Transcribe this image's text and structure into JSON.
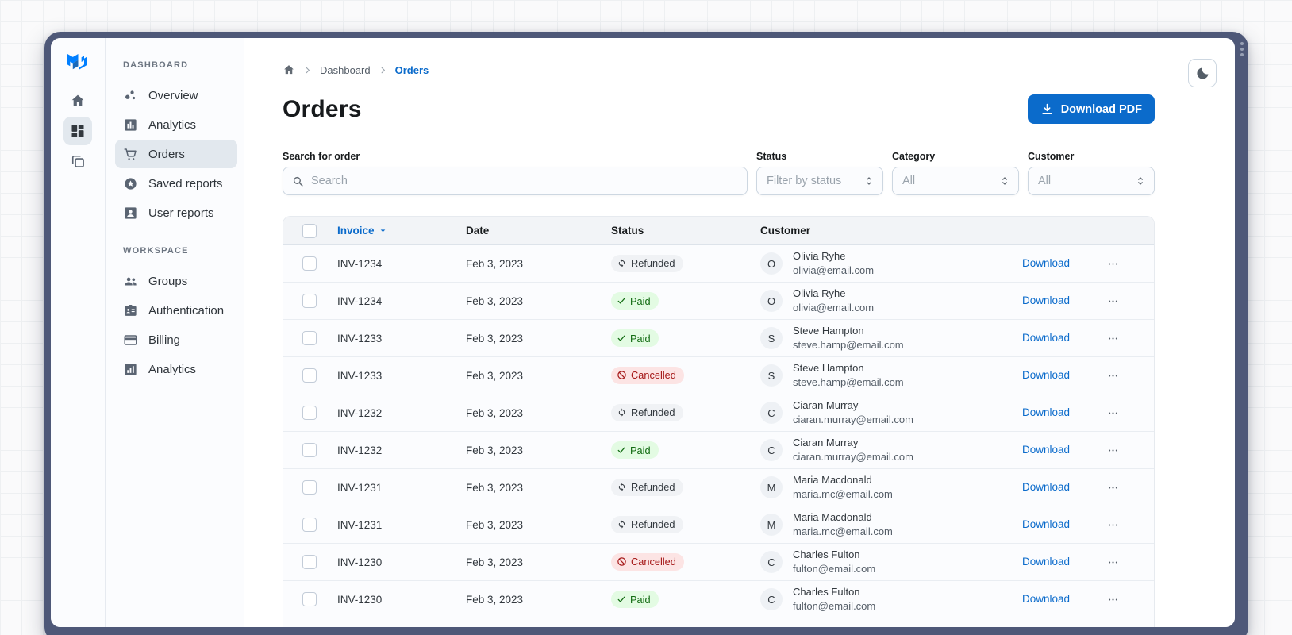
{
  "window": {
    "frame_color": "#4E5878",
    "scrollbar_dots": 3
  },
  "sidebar": {
    "rail": {
      "logo_icon": "mui-logo",
      "items": [
        {
          "icon": "home-icon",
          "active": false
        },
        {
          "icon": "dashboard-icon",
          "active": true
        },
        {
          "icon": "stack-icon",
          "active": false
        }
      ]
    },
    "sections": [
      {
        "label": "DASHBOARD",
        "items": [
          {
            "icon": "scatter-icon",
            "label": "Overview",
            "active": false
          },
          {
            "icon": "bar-chart-icon",
            "label": "Analytics",
            "active": false
          },
          {
            "icon": "cart-icon",
            "label": "Orders",
            "active": true
          },
          {
            "icon": "star-circle-icon",
            "label": "Saved reports",
            "active": false
          },
          {
            "icon": "user-box-icon",
            "label": "User reports",
            "active": false
          }
        ]
      },
      {
        "label": "WORKSPACE",
        "items": [
          {
            "icon": "groups-icon",
            "label": "Groups",
            "active": false
          },
          {
            "icon": "badge-icon",
            "label": "Authentication",
            "active": false
          },
          {
            "icon": "credit-card-icon",
            "label": "Billing",
            "active": false
          },
          {
            "icon": "analytics-icon",
            "label": "Analytics",
            "active": false
          }
        ]
      }
    ]
  },
  "breadcrumb": {
    "home_icon": "home-icon",
    "link": "Dashboard",
    "current": "Orders"
  },
  "header": {
    "title": "Orders",
    "download_button": "Download PDF",
    "theme_toggle_icon": "moon-icon"
  },
  "filters": {
    "search": {
      "label": "Search for order",
      "placeholder": "Search"
    },
    "selects": [
      {
        "label": "Status",
        "value": "Filter by status"
      },
      {
        "label": "Category",
        "value": "All"
      },
      {
        "label": "Customer",
        "value": "All"
      }
    ]
  },
  "table": {
    "columns": {
      "invoice": "Invoice",
      "date": "Date",
      "status": "Status",
      "customer": "Customer"
    },
    "sorted_by": "invoice",
    "row_action_label": "Download",
    "rows": [
      {
        "invoice": "INV-1234",
        "date": "Feb 3, 2023",
        "status": "Refunded",
        "initial": "O",
        "name": "Olivia Ryhe",
        "email": "olivia@email.com"
      },
      {
        "invoice": "INV-1234",
        "date": "Feb 3, 2023",
        "status": "Paid",
        "initial": "O",
        "name": "Olivia Ryhe",
        "email": "olivia@email.com"
      },
      {
        "invoice": "INV-1233",
        "date": "Feb 3, 2023",
        "status": "Paid",
        "initial": "S",
        "name": "Steve Hampton",
        "email": "steve.hamp@email.com"
      },
      {
        "invoice": "INV-1233",
        "date": "Feb 3, 2023",
        "status": "Cancelled",
        "initial": "S",
        "name": "Steve Hampton",
        "email": "steve.hamp@email.com"
      },
      {
        "invoice": "INV-1232",
        "date": "Feb 3, 2023",
        "status": "Refunded",
        "initial": "C",
        "name": "Ciaran Murray",
        "email": "ciaran.murray@email.com"
      },
      {
        "invoice": "INV-1232",
        "date": "Feb 3, 2023",
        "status": "Paid",
        "initial": "C",
        "name": "Ciaran Murray",
        "email": "ciaran.murray@email.com"
      },
      {
        "invoice": "INV-1231",
        "date": "Feb 3, 2023",
        "status": "Refunded",
        "initial": "M",
        "name": "Maria Macdonald",
        "email": "maria.mc@email.com"
      },
      {
        "invoice": "INV-1231",
        "date": "Feb 3, 2023",
        "status": "Refunded",
        "initial": "M",
        "name": "Maria Macdonald",
        "email": "maria.mc@email.com"
      },
      {
        "invoice": "INV-1230",
        "date": "Feb 3, 2023",
        "status": "Cancelled",
        "initial": "C",
        "name": "Charles Fulton",
        "email": "fulton@email.com"
      },
      {
        "invoice": "INV-1230",
        "date": "Feb 3, 2023",
        "status": "Paid",
        "initial": "C",
        "name": "Charles Fulton",
        "email": "fulton@email.com"
      }
    ]
  },
  "status_styles": {
    "Refunded": {
      "icon": "refresh-icon",
      "bg": "#F0F2F5",
      "color": "#32383E"
    },
    "Paid": {
      "icon": "check-icon",
      "bg": "#E3FBE3",
      "color": "#136C13"
    },
    "Cancelled": {
      "icon": "block-icon",
      "bg": "#FCE4E4",
      "color": "#A51818"
    }
  },
  "colors": {
    "accent": "#0B6BCB",
    "frame": "#4E5878",
    "sidebar_active_bg": "#E2E8EE",
    "table_header_bg": "#F2F4F7"
  }
}
